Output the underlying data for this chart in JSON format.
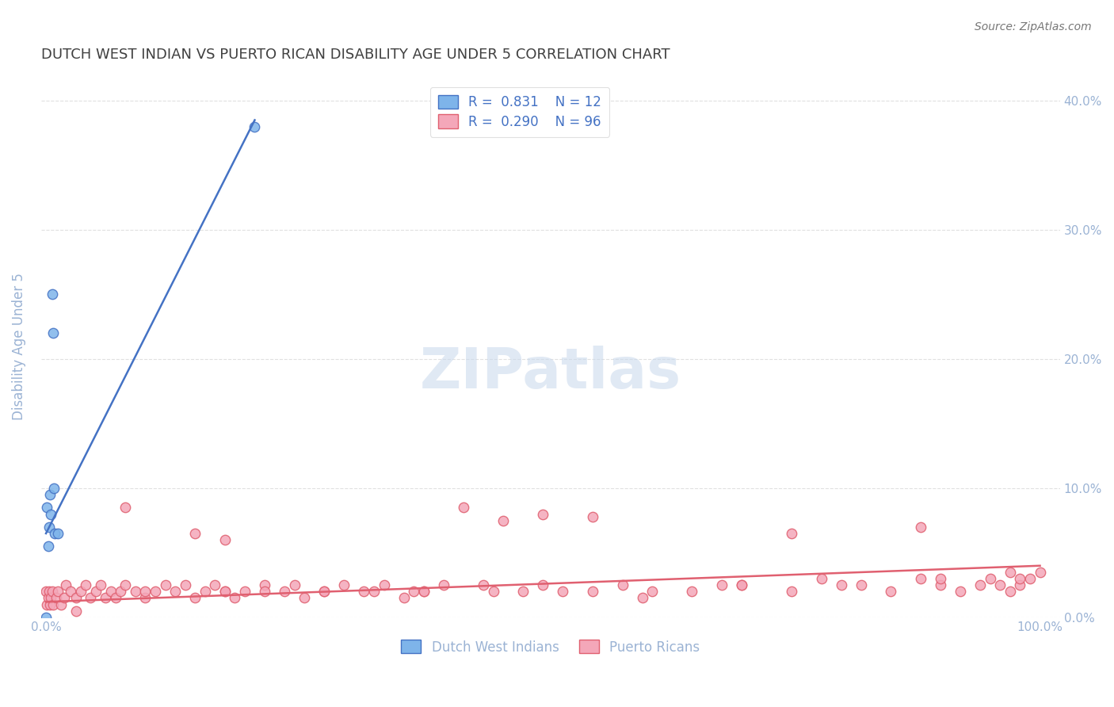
{
  "title": "DUTCH WEST INDIAN VS PUERTO RICAN DISABILITY AGE UNDER 5 CORRELATION CHART",
  "source": "Source: ZipAtlas.com",
  "xlabel_ticks": [
    "0.0%",
    "100.0%"
  ],
  "ylabel": "Disability Age Under 5",
  "ylabel_right_ticks": [
    "0.0%",
    "10.0%",
    "20.0%",
    "30.0%",
    "40.0%"
  ],
  "ylim": [
    0.0,
    0.42
  ],
  "xlim": [
    -0.005,
    1.02
  ],
  "blue_color": "#7EB4EA",
  "pink_color": "#F4A7B9",
  "blue_line_color": "#4472C4",
  "pink_line_color": "#E06070",
  "legend_blue_r": "R =  0.831",
  "legend_blue_n": "N = 12",
  "legend_pink_r": "R =  0.290",
  "legend_pink_n": "N = 96",
  "blue_scatter_x": [
    0.0,
    0.001,
    0.002,
    0.003,
    0.004,
    0.005,
    0.006,
    0.007,
    0.008,
    0.009,
    0.012,
    0.21
  ],
  "blue_scatter_y": [
    0.0,
    0.085,
    0.055,
    0.07,
    0.095,
    0.08,
    0.25,
    0.22,
    0.1,
    0.065,
    0.065,
    0.38
  ],
  "pink_scatter_x": [
    0.0,
    0.001,
    0.002,
    0.003,
    0.004,
    0.005,
    0.006,
    0.007,
    0.01,
    0.012,
    0.015,
    0.018,
    0.02,
    0.025,
    0.03,
    0.035,
    0.04,
    0.045,
    0.05,
    0.055,
    0.06,
    0.065,
    0.07,
    0.075,
    0.08,
    0.09,
    0.1,
    0.11,
    0.12,
    0.13,
    0.14,
    0.15,
    0.16,
    0.17,
    0.18,
    0.19,
    0.2,
    0.22,
    0.24,
    0.26,
    0.28,
    0.3,
    0.32,
    0.34,
    0.36,
    0.38,
    0.4,
    0.45,
    0.5,
    0.55,
    0.6,
    0.65,
    0.7,
    0.75,
    0.8,
    0.85,
    0.9,
    0.92,
    0.94,
    0.95,
    0.96,
    0.97,
    0.98,
    0.99,
    1.0,
    0.5,
    0.42,
    0.08,
    0.46,
    0.55,
    0.75,
    0.88,
    0.1,
    0.18,
    0.25,
    0.33,
    0.15,
    0.22,
    0.37,
    0.44,
    0.52,
    0.61,
    0.7,
    0.82,
    0.9,
    0.97,
    0.18,
    0.28,
    0.38,
    0.48,
    0.58,
    0.68,
    0.78,
    0.88,
    0.98,
    0.03
  ],
  "pink_scatter_y": [
    0.02,
    0.01,
    0.015,
    0.02,
    0.01,
    0.015,
    0.02,
    0.01,
    0.015,
    0.02,
    0.01,
    0.015,
    0.025,
    0.02,
    0.015,
    0.02,
    0.025,
    0.015,
    0.02,
    0.025,
    0.015,
    0.02,
    0.015,
    0.02,
    0.025,
    0.02,
    0.015,
    0.02,
    0.025,
    0.02,
    0.025,
    0.015,
    0.02,
    0.025,
    0.02,
    0.015,
    0.02,
    0.025,
    0.02,
    0.015,
    0.02,
    0.025,
    0.02,
    0.025,
    0.015,
    0.02,
    0.025,
    0.02,
    0.025,
    0.02,
    0.015,
    0.02,
    0.025,
    0.02,
    0.025,
    0.02,
    0.025,
    0.02,
    0.025,
    0.03,
    0.025,
    0.02,
    0.025,
    0.03,
    0.035,
    0.08,
    0.085,
    0.085,
    0.075,
    0.078,
    0.065,
    0.07,
    0.02,
    0.06,
    0.025,
    0.02,
    0.065,
    0.02,
    0.02,
    0.025,
    0.02,
    0.02,
    0.025,
    0.025,
    0.03,
    0.035,
    0.02,
    0.02,
    0.02,
    0.02,
    0.025,
    0.025,
    0.03,
    0.03,
    0.03,
    0.005
  ],
  "blue_trend_x": [
    0.0,
    0.21
  ],
  "blue_trend_y": [
    0.065,
    0.385
  ],
  "pink_trend_x": [
    0.0,
    1.0
  ],
  "pink_trend_y": [
    0.012,
    0.04
  ],
  "watermark": "ZIPatlas",
  "background_color": "#FFFFFF",
  "grid_color": "#E0E0E0",
  "title_color": "#404040",
  "axis_color": "#9BB3D4",
  "tick_color": "#9BB3D4"
}
